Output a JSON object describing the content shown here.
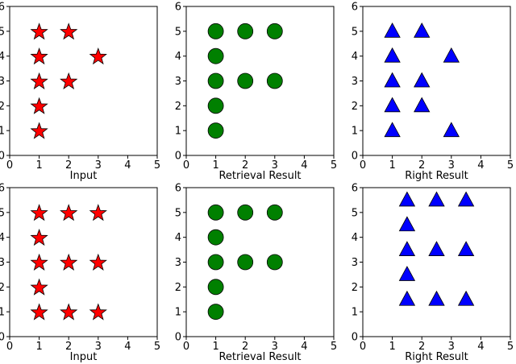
{
  "colors": {
    "star": "#ff0000",
    "circle": "#008000",
    "triangle": "#0000ff",
    "edge": "#000000",
    "axis": "#000000"
  },
  "chart_data": [
    {
      "type": "scatter",
      "marker": "star",
      "xlim": [
        0,
        5
      ],
      "ylim": [
        0,
        6
      ],
      "xticks": [
        "0",
        "1",
        "2",
        "3",
        "4",
        "5"
      ],
      "yticks": [
        "0",
        "1",
        "2",
        "3",
        "4",
        "5",
        "6"
      ],
      "xlabel": "Input",
      "grid": false,
      "points": [
        [
          1,
          5
        ],
        [
          2,
          5
        ],
        [
          1,
          4
        ],
        [
          3,
          4
        ],
        [
          1,
          3
        ],
        [
          2,
          3
        ],
        [
          1,
          2
        ],
        [
          1,
          1
        ]
      ]
    },
    {
      "type": "scatter",
      "marker": "circle",
      "xlim": [
        0,
        5
      ],
      "ylim": [
        0,
        6
      ],
      "xticks": [
        "0",
        "1",
        "2",
        "3",
        "4",
        "5"
      ],
      "yticks": [
        "0",
        "1",
        "2",
        "3",
        "4",
        "5",
        "6"
      ],
      "xlabel": "Retrieval Result",
      "grid": false,
      "points": [
        [
          1,
          5
        ],
        [
          2,
          5
        ],
        [
          3,
          5
        ],
        [
          1,
          4
        ],
        [
          1,
          3
        ],
        [
          2,
          3
        ],
        [
          3,
          3
        ],
        [
          1,
          2
        ],
        [
          1,
          1
        ]
      ]
    },
    {
      "type": "scatter",
      "marker": "triangle",
      "xlim": [
        0,
        5
      ],
      "ylim": [
        0,
        6
      ],
      "xticks": [
        "0",
        "1",
        "2",
        "3",
        "4",
        "5"
      ],
      "yticks": [
        "0",
        "1",
        "2",
        "3",
        "4",
        "5",
        "6"
      ],
      "xlabel": "Right Result",
      "grid": false,
      "points": [
        [
          1,
          5
        ],
        [
          2,
          5
        ],
        [
          1,
          4
        ],
        [
          3,
          4
        ],
        [
          1,
          3
        ],
        [
          2,
          3
        ],
        [
          1,
          2
        ],
        [
          2,
          2
        ],
        [
          1,
          1
        ],
        [
          3,
          1
        ]
      ]
    },
    {
      "type": "scatter",
      "marker": "star",
      "xlim": [
        0,
        5
      ],
      "ylim": [
        0,
        6
      ],
      "xticks": [
        "0",
        "1",
        "2",
        "3",
        "4",
        "5"
      ],
      "yticks": [
        "0",
        "1",
        "2",
        "3",
        "4",
        "5",
        "6"
      ],
      "xlabel": "Input",
      "grid": false,
      "points": [
        [
          1,
          5
        ],
        [
          2,
          5
        ],
        [
          3,
          5
        ],
        [
          1,
          4
        ],
        [
          1,
          3
        ],
        [
          2,
          3
        ],
        [
          3,
          3
        ],
        [
          1,
          2
        ],
        [
          1,
          1
        ],
        [
          2,
          1
        ],
        [
          3,
          1
        ]
      ]
    },
    {
      "type": "scatter",
      "marker": "circle",
      "xlim": [
        0,
        5
      ],
      "ylim": [
        0,
        6
      ],
      "xticks": [
        "0",
        "1",
        "2",
        "3",
        "4",
        "5"
      ],
      "yticks": [
        "0",
        "1",
        "2",
        "3",
        "4",
        "5",
        "6"
      ],
      "xlabel": "Retrieval Result",
      "grid": false,
      "points": [
        [
          1,
          5
        ],
        [
          2,
          5
        ],
        [
          3,
          5
        ],
        [
          1,
          4
        ],
        [
          1,
          3
        ],
        [
          2,
          3
        ],
        [
          3,
          3
        ],
        [
          1,
          2
        ],
        [
          1,
          1
        ]
      ]
    },
    {
      "type": "scatter",
      "marker": "triangle",
      "xlim": [
        0,
        5
      ],
      "ylim": [
        0,
        6
      ],
      "xticks": [
        "0",
        "1",
        "2",
        "3",
        "4",
        "5"
      ],
      "yticks": [
        "0",
        "1",
        "2",
        "3",
        "4",
        "5",
        "6"
      ],
      "xlabel": "Right Result",
      "grid": false,
      "points": [
        [
          1.5,
          5.5
        ],
        [
          2.5,
          5.5
        ],
        [
          3.5,
          5.5
        ],
        [
          1.5,
          4.5
        ],
        [
          1.5,
          3.5
        ],
        [
          2.5,
          3.5
        ],
        [
          3.5,
          3.5
        ],
        [
          1.5,
          2.5
        ],
        [
          1.5,
          1.5
        ],
        [
          2.5,
          1.5
        ],
        [
          3.5,
          1.5
        ]
      ]
    }
  ]
}
